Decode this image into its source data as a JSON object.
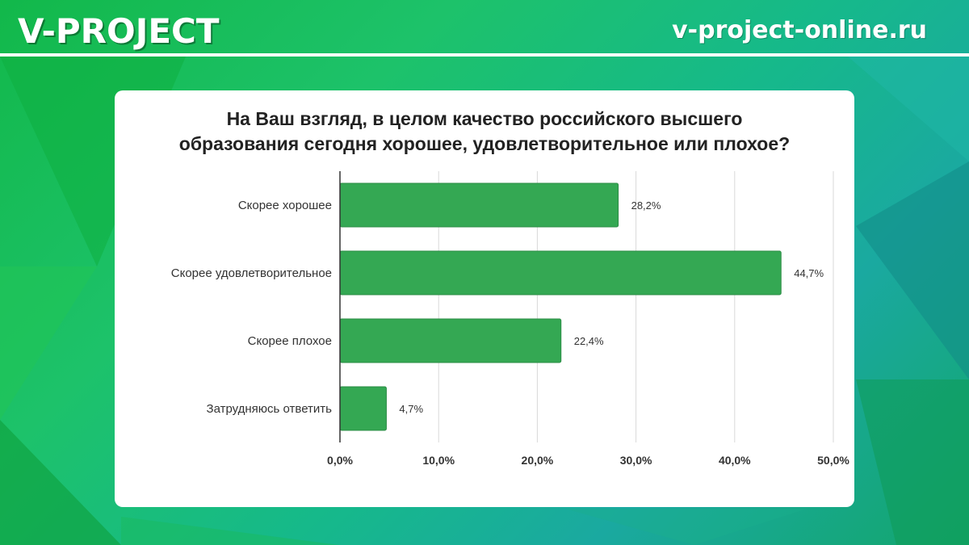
{
  "header": {
    "brand": "V-PROJECT",
    "site": "v-project-online.ru"
  },
  "colors": {
    "bar": "#34a853",
    "bar_edge": "#2b8c45",
    "grid": "#d9d9d9",
    "axis": "#333333"
  },
  "chart_data": {
    "type": "bar",
    "orientation": "horizontal",
    "title": "На Ваш взгляд, в целом качество российского высшего образования сегодня хорошее, удовлетворительное или плохое?",
    "title_lines": [
      "На Ваш взгляд, в целом качество российского высшего",
      "образования сегодня хорошее, удовлетворительное или плохое?"
    ],
    "categories": [
      "Скорее хорошее",
      "Скорее удовлетворительное",
      "Скорее плохое",
      "Затрудняюсь ответить"
    ],
    "values": [
      28.2,
      44.7,
      22.4,
      4.7
    ],
    "value_labels": [
      "28,2%",
      "44,7%",
      "22,4%",
      "4,7%"
    ],
    "xlim": [
      0,
      50
    ],
    "ticks": [
      0,
      10,
      20,
      30,
      40,
      50
    ],
    "tick_labels": [
      "0,0%",
      "10,0%",
      "20,0%",
      "30,0%",
      "40,0%",
      "50,0%"
    ],
    "grid": true,
    "legend": "none",
    "xlabel": "",
    "ylabel": ""
  }
}
